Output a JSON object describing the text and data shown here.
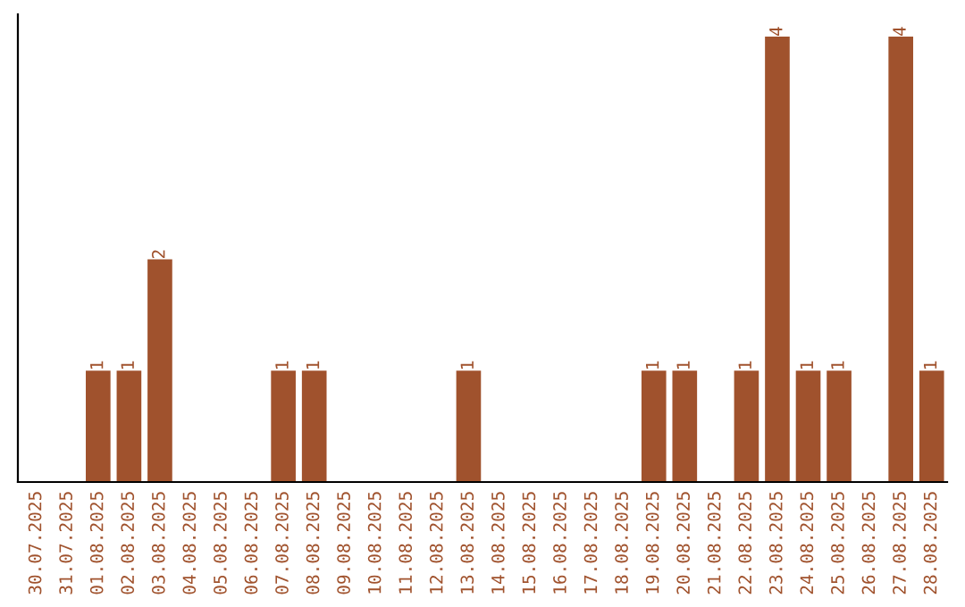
{
  "chart_data": {
    "type": "bar",
    "categories": [
      "30.07.2025",
      "31.07.2025",
      "01.08.2025",
      "02.08.2025",
      "03.08.2025",
      "04.08.2025",
      "05.08.2025",
      "06.08.2025",
      "07.08.2025",
      "08.08.2025",
      "09.08.2025",
      "10.08.2025",
      "11.08.2025",
      "12.08.2025",
      "13.08.2025",
      "14.08.2025",
      "15.08.2025",
      "16.08.2025",
      "17.08.2025",
      "18.08.2025",
      "19.08.2025",
      "20.08.2025",
      "21.08.2025",
      "22.08.2025",
      "23.08.2025",
      "24.08.2025",
      "25.08.2025",
      "26.08.2025",
      "27.08.2025",
      "28.08.2025"
    ],
    "values": [
      0,
      0,
      1,
      1,
      2,
      0,
      0,
      0,
      1,
      1,
      0,
      0,
      0,
      0,
      1,
      0,
      0,
      0,
      0,
      0,
      1,
      1,
      0,
      1,
      4,
      1,
      1,
      0,
      4,
      1
    ],
    "value_labels": [
      null,
      null,
      "1",
      "1",
      "2",
      null,
      null,
      null,
      "1",
      "1",
      null,
      null,
      null,
      null,
      "1",
      null,
      null,
      null,
      null,
      null,
      "1",
      "1",
      null,
      "1",
      "4",
      "1",
      "1",
      null,
      "4",
      "1"
    ],
    "color": "#a0522d",
    "ylim": [
      0,
      4.2
    ],
    "tick_labels": "x",
    "grid": false,
    "legend": false
  }
}
